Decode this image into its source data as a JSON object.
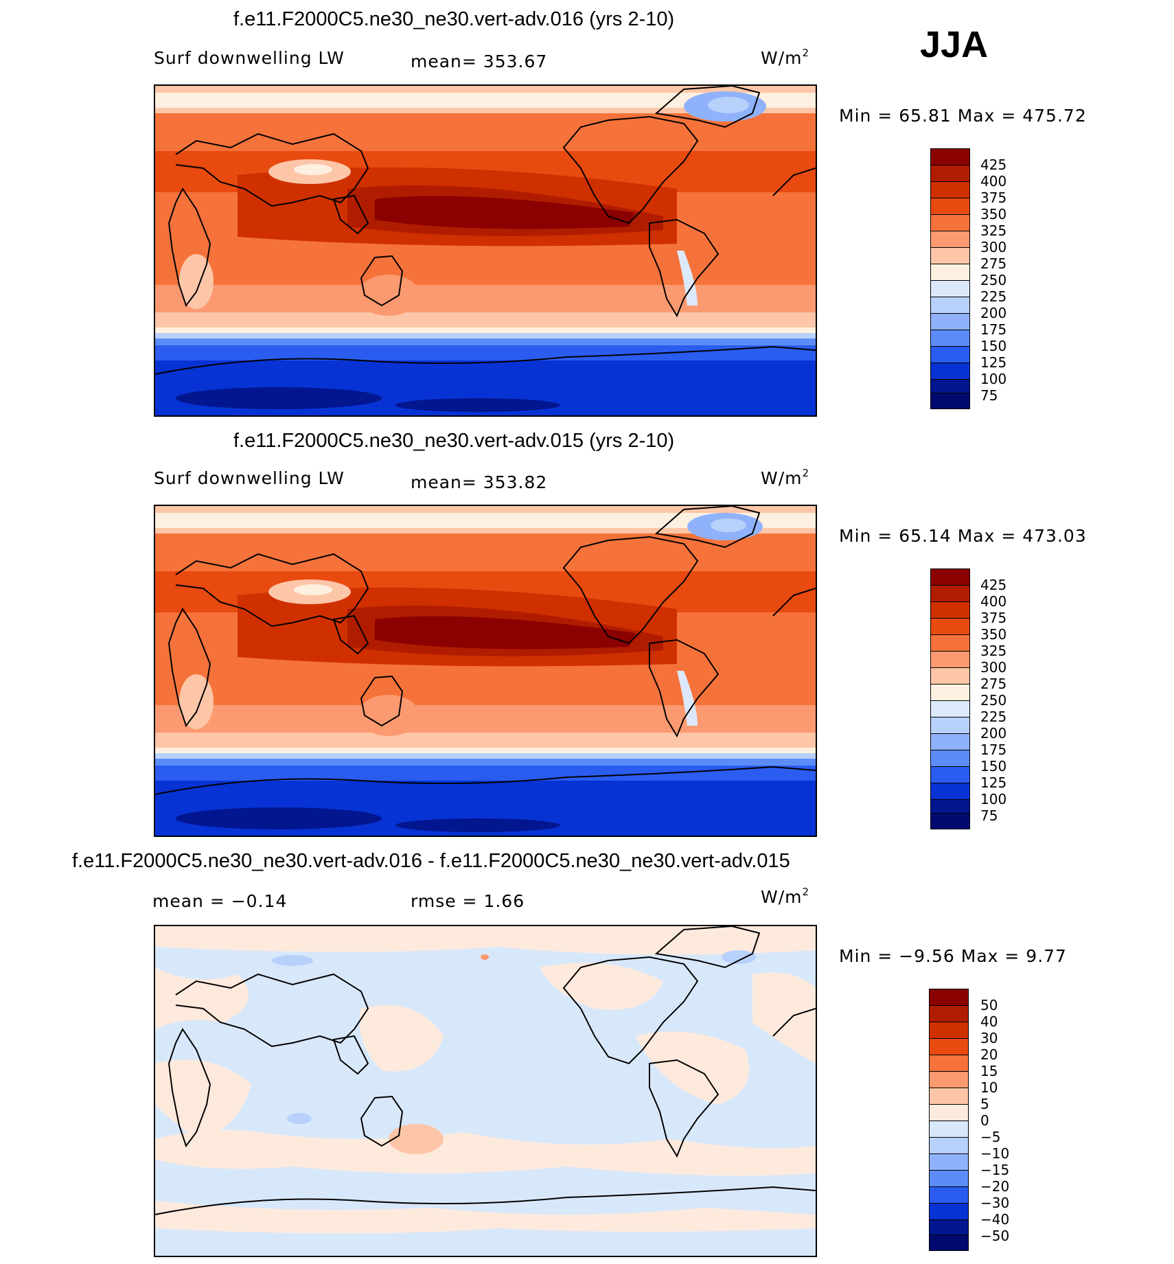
{
  "season": "JJA",
  "panels": [
    {
      "title": "f.e11.F2000C5.ne30_ne30.vert-adv.016 (yrs 2-10)",
      "left_label": "Surf downwelling LW",
      "center_label": "mean= 353.67",
      "units": "W/m",
      "units_sup": "2",
      "minmax": "Min =   65.81 Max = 475.72",
      "levels": [
        "425",
        "400",
        "375",
        "350",
        "325",
        "300",
        "275",
        "250",
        "225",
        "200",
        "175",
        "150",
        "125",
        "100",
        "75"
      ]
    },
    {
      "title": "f.e11.F2000C5.ne30_ne30.vert-adv.015 (yrs 2-10)",
      "left_label": "Surf downwelling LW",
      "center_label": "mean= 353.82",
      "units": "W/m",
      "units_sup": "2",
      "minmax": "Min =   65.14 Max = 473.03",
      "levels": [
        "425",
        "400",
        "375",
        "350",
        "325",
        "300",
        "275",
        "250",
        "225",
        "200",
        "175",
        "150",
        "125",
        "100",
        "75"
      ]
    },
    {
      "title": "f.e11.F2000C5.ne30_ne30.vert-adv.016 - f.e11.F2000C5.ne30_ne30.vert-adv.015",
      "left_label": "mean =   −0.14",
      "center_label": "rmse =    1.66",
      "units": "W/m",
      "units_sup": "2",
      "minmax": "Min =  −9.56 Max =    9.77",
      "levels": [
        "50",
        "40",
        "30",
        "20",
        "15",
        "10",
        "5",
        "0",
        "−5",
        "−10",
        "−15",
        "−20",
        "−30",
        "−40",
        "−50"
      ]
    }
  ],
  "colorbar_colors": [
    "#8b0000",
    "#b01c00",
    "#d03000",
    "#e84a10",
    "#f5733a",
    "#fb9a70",
    "#fdc6a8",
    "#fef0e0",
    "#dce9fa",
    "#b8d1fb",
    "#8fb2fb",
    "#5c8cf8",
    "#2a5cf0",
    "#0733d4",
    "#02168f",
    "#000a6e"
  ],
  "diff_colors": [
    "#8b0000",
    "#b01c00",
    "#d03000",
    "#e84a10",
    "#f5733a",
    "#fb9a70",
    "#fdc6a8",
    "#feeadc",
    "#d8e8fb",
    "#b8d1fb",
    "#8fb2fb",
    "#5c8cf8",
    "#2a5cf0",
    "#0733d4",
    "#02168f",
    "#000a6e"
  ]
}
